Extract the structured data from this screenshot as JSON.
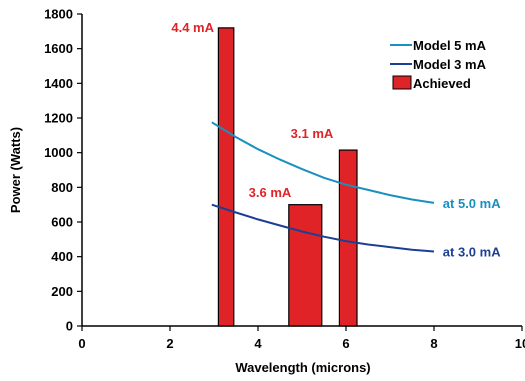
{
  "chart_data": {
    "type": "bar+line",
    "xlabel": "Wavelength (microns)",
    "ylabel": "Power (Watts)",
    "xlim": [
      0,
      10
    ],
    "ylim": [
      0,
      1800
    ],
    "xticks": [
      "0",
      "2",
      "4",
      "6",
      "8",
      "10"
    ],
    "yticks": [
      "0",
      "200",
      "400",
      "600",
      "800",
      "1000",
      "1200",
      "1400",
      "1600",
      "1800"
    ],
    "series": [
      {
        "name": "Model 5 mA",
        "kind": "line",
        "color": "#1a8fc0",
        "x": [
          2.95,
          3.5,
          4.0,
          4.5,
          5.0,
          5.5,
          6.0,
          6.5,
          7.0,
          7.5,
          8.0
        ],
        "y": [
          1175,
          1090,
          1020,
          960,
          905,
          855,
          815,
          785,
          755,
          730,
          710
        ]
      },
      {
        "name": "Model 3 mA",
        "kind": "line",
        "color": "#1c3f94",
        "x": [
          2.95,
          3.5,
          4.0,
          4.5,
          5.0,
          5.5,
          6.0,
          6.5,
          7.0,
          7.5,
          8.0
        ],
        "y": [
          700,
          655,
          615,
          580,
          545,
          515,
          490,
          470,
          455,
          440,
          430
        ]
      },
      {
        "name": "Achieved",
        "kind": "bar",
        "color": "#e02327",
        "points": [
          {
            "x0": 3.1,
            "x1": 3.45,
            "y": 1720,
            "label": "4.4 mA"
          },
          {
            "x0": 4.7,
            "x1": 5.45,
            "y": 700,
            "label": "3.6 mA"
          },
          {
            "x0": 5.85,
            "x1": 6.25,
            "y": 1015,
            "label": "3.1 mA"
          }
        ]
      }
    ],
    "annotations": [
      {
        "text": "at 5.0 mA",
        "x": 8.2,
        "y": 710,
        "color": "#1a8fc0"
      },
      {
        "text": "at 3.0 mA",
        "x": 8.2,
        "y": 430,
        "color": "#1c3f94"
      }
    ],
    "legend": {
      "placement": "top-right"
    },
    "label_color": "#e02327",
    "grid": false
  }
}
